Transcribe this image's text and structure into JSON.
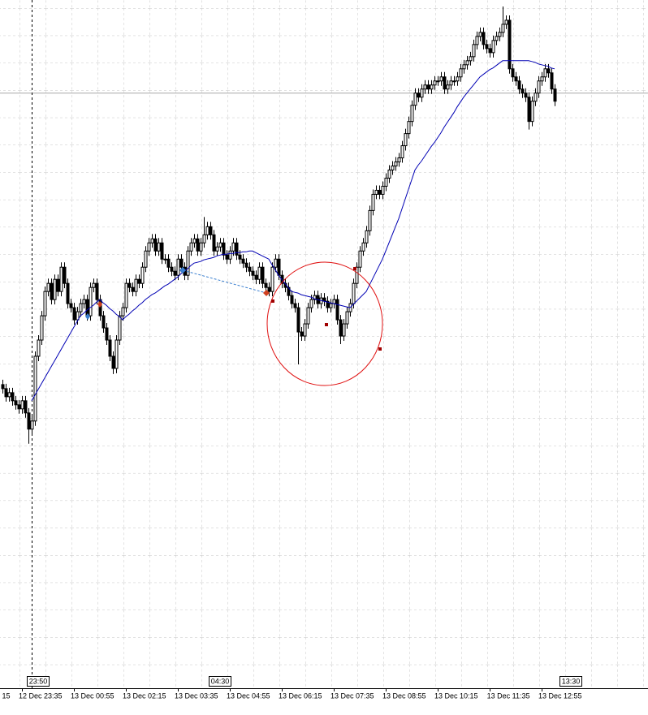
{
  "chart_data": {
    "type": "candlestick",
    "color": "#000000",
    "open": [
      375,
      370,
      360,
      365,
      355,
      350,
      345,
      355,
      340,
      320,
      330,
      410,
      430,
      460,
      490,
      500,
      480,
      505,
      490,
      520,
      500,
      475,
      470,
      455,
      465,
      475,
      480,
      460,
      495,
      500,
      480,
      460,
      445,
      430,
      410,
      395,
      430,
      460,
      470,
      500,
      495,
      490,
      505,
      500,
      520,
      540,
      550,
      555,
      540,
      550,
      530,
      530,
      520,
      515,
      510,
      530,
      520,
      510,
      540,
      550,
      555,
      540,
      550,
      560,
      570,
      560,
      540,
      545,
      550,
      535,
      530,
      540,
      550,
      535,
      530,
      525,
      520,
      515,
      510,
      505,
      520,
      500,
      495,
      490,
      520,
      530,
      510,
      500,
      495,
      485,
      475,
      470,
      440,
      435,
      450,
      470,
      480,
      485,
      475,
      482,
      478,
      470,
      475,
      480,
      455,
      435,
      450,
      465,
      475,
      500,
      520,
      540,
      550,
      565,
      590,
      610,
      615,
      610,
      620,
      630,
      640,
      645,
      650,
      655,
      670,
      685,
      700,
      720,
      735,
      730,
      740,
      745,
      740,
      745,
      750,
      750,
      755,
      740,
      745,
      750,
      750,
      755,
      765,
      770,
      775,
      780,
      795,
      805,
      810,
      795,
      790,
      785,
      800,
      805,
      810,
      820,
      825,
      765,
      755,
      750,
      740,
      735,
      730,
      700,
      725,
      735,
      750,
      755,
      765,
      760,
      740
    ],
    "high": [
      381,
      376,
      371,
      371,
      361,
      356,
      361,
      361,
      346,
      336,
      416,
      436,
      466,
      496,
      506,
      506,
      511,
      511,
      526,
      526,
      506,
      481,
      476,
      471,
      481,
      486,
      486,
      501,
      506,
      506,
      486,
      466,
      451,
      436,
      416,
      436,
      466,
      476,
      506,
      506,
      501,
      511,
      511,
      526,
      546,
      556,
      561,
      561,
      556,
      556,
      536,
      536,
      526,
      521,
      536,
      536,
      526,
      546,
      556,
      561,
      561,
      556,
      582,
      576,
      576,
      566,
      551,
      556,
      556,
      541,
      546,
      556,
      556,
      541,
      536,
      531,
      526,
      521,
      516,
      526,
      526,
      506,
      501,
      526,
      536,
      536,
      516,
      506,
      501,
      491,
      481,
      476,
      446,
      456,
      476,
      486,
      491,
      491,
      488,
      488,
      484,
      481,
      486,
      486,
      461,
      456,
      471,
      481,
      506,
      526,
      546,
      556,
      571,
      596,
      616,
      621,
      621,
      626,
      636,
      646,
      651,
      656,
      661,
      676,
      691,
      706,
      726,
      741,
      741,
      746,
      751,
      751,
      751,
      756,
      756,
      761,
      761,
      751,
      756,
      756,
      761,
      771,
      776,
      781,
      786,
      801,
      811,
      816,
      816,
      801,
      796,
      806,
      811,
      816,
      842,
      831,
      831,
      771,
      761,
      756,
      746,
      741,
      736,
      731,
      741,
      756,
      761,
      771,
      771,
      766,
      746
    ],
    "low": [
      364,
      354,
      354,
      349,
      344,
      339,
      339,
      334,
      302,
      314,
      324,
      404,
      424,
      454,
      484,
      474,
      474,
      484,
      484,
      494,
      469,
      464,
      449,
      449,
      459,
      469,
      454,
      454,
      489,
      474,
      454,
      439,
      424,
      404,
      388,
      389,
      424,
      454,
      464,
      489,
      484,
      484,
      494,
      494,
      514,
      534,
      544,
      534,
      534,
      524,
      524,
      514,
      509,
      504,
      504,
      514,
      504,
      504,
      534,
      544,
      534,
      534,
      544,
      554,
      554,
      534,
      534,
      539,
      529,
      524,
      524,
      534,
      529,
      524,
      519,
      514,
      509,
      504,
      499,
      499,
      494,
      489,
      484,
      484,
      514,
      504,
      494,
      489,
      479,
      469,
      464,
      400,
      429,
      429,
      444,
      464,
      474,
      469,
      469,
      472,
      464,
      464,
      469,
      449,
      425,
      429,
      444,
      459,
      469,
      494,
      514,
      534,
      544,
      559,
      584,
      604,
      604,
      604,
      614,
      624,
      634,
      639,
      644,
      649,
      664,
      679,
      694,
      714,
      724,
      724,
      734,
      734,
      734,
      739,
      744,
      744,
      734,
      734,
      739,
      744,
      744,
      749,
      759,
      764,
      769,
      774,
      789,
      799,
      789,
      784,
      779,
      779,
      794,
      799,
      804,
      814,
      759,
      749,
      744,
      734,
      729,
      724,
      690,
      694,
      719,
      729,
      744,
      749,
      754,
      734,
      719
    ],
    "close": [
      370,
      360,
      365,
      355,
      350,
      345,
      355,
      340,
      320,
      330,
      410,
      430,
      460,
      490,
      500,
      480,
      505,
      490,
      520,
      500,
      475,
      470,
      455,
      465,
      475,
      480,
      460,
      495,
      500,
      480,
      460,
      445,
      430,
      410,
      395,
      430,
      460,
      470,
      500,
      495,
      490,
      505,
      500,
      520,
      540,
      550,
      555,
      540,
      550,
      530,
      530,
      520,
      515,
      510,
      530,
      520,
      510,
      540,
      550,
      555,
      540,
      550,
      560,
      570,
      560,
      540,
      545,
      550,
      535,
      530,
      540,
      550,
      535,
      530,
      525,
      520,
      515,
      510,
      505,
      520,
      500,
      495,
      490,
      520,
      530,
      510,
      500,
      495,
      485,
      475,
      470,
      440,
      435,
      450,
      470,
      480,
      485,
      475,
      482,
      478,
      470,
      475,
      480,
      455,
      435,
      450,
      465,
      475,
      500,
      520,
      540,
      550,
      565,
      590,
      610,
      615,
      610,
      620,
      630,
      640,
      645,
      650,
      655,
      670,
      685,
      700,
      720,
      735,
      730,
      740,
      745,
      740,
      745,
      750,
      750,
      755,
      740,
      745,
      750,
      750,
      755,
      765,
      770,
      775,
      780,
      795,
      805,
      810,
      795,
      790,
      785,
      800,
      805,
      810,
      820,
      825,
      765,
      755,
      750,
      740,
      735,
      730,
      700,
      725,
      735,
      750,
      755,
      765,
      760,
      740,
      725
    ],
    "moving_average": {
      "color": "#0000b4",
      "values": [
        null,
        null,
        null,
        null,
        null,
        null,
        null,
        null,
        null,
        355,
        362,
        369,
        376,
        383,
        390,
        397,
        404,
        411,
        418,
        425,
        432,
        439,
        446,
        453,
        460,
        463,
        467,
        470,
        473,
        477,
        480,
        476,
        473,
        469,
        466,
        462,
        459,
        455,
        459,
        462,
        466,
        469,
        473,
        476,
        480,
        483,
        486,
        488,
        491,
        494,
        497,
        499,
        502,
        505,
        508,
        512,
        515,
        518,
        522,
        525,
        526,
        527,
        529,
        530,
        531,
        532,
        534,
        535,
        536,
        536,
        537,
        537,
        538,
        538,
        539,
        539,
        540,
        540,
        538,
        536,
        534,
        532,
        530,
        523,
        517,
        510,
        505,
        500,
        495,
        490,
        489,
        488,
        486,
        485,
        484,
        483,
        481,
        480,
        479,
        478,
        477,
        476,
        475,
        474,
        473,
        472,
        471,
        470,
        474,
        478,
        482,
        486,
        490,
        498,
        506,
        514,
        522,
        530,
        540,
        550,
        560,
        570,
        580,
        592,
        604,
        616,
        628,
        640,
        646,
        651,
        657,
        663,
        669,
        674,
        680,
        686,
        693,
        699,
        705,
        711,
        718,
        724,
        730,
        735,
        740,
        745,
        750,
        755,
        758,
        761,
        764,
        766,
        769,
        772,
        775,
        775,
        775,
        775,
        775,
        775,
        775,
        775,
        775,
        774,
        773,
        771,
        770,
        769,
        768,
        766,
        765
      ]
    },
    "hline": {
      "value": 735,
      "color": "#a8a8a8"
    },
    "ylim": [
      0,
      850
    ],
    "xlim": [
      -0.75,
      198.75
    ],
    "xticks": [
      {
        "value": -10,
        "label": "15"
      },
      {
        "value": 6,
        "label": "12 Dec 23:35"
      },
      {
        "value": 22,
        "label": "13 Dec 00:55"
      },
      {
        "value": 38,
        "label": "13 Dec 02:15"
      },
      {
        "value": 54,
        "label": "13 Dec 03:35"
      },
      {
        "value": 70,
        "label": "13 Dec 04:55"
      },
      {
        "value": 86,
        "label": "13 Dec 06:15"
      },
      {
        "value": 102,
        "label": "13 Dec 07:35"
      },
      {
        "value": 118,
        "label": "13 Dec 08:55"
      },
      {
        "value": 134,
        "label": "13 Dec 10:15"
      },
      {
        "value": 150,
        "label": "13 Dec 11:35"
      },
      {
        "value": 166,
        "label": "13 Dec 12:55"
      }
    ],
    "time_markers": [
      {
        "value": 9,
        "label": "23:50",
        "line": true
      },
      {
        "value": 65,
        "label": "04:30",
        "line": false
      },
      {
        "value": 173,
        "label": "13:30",
        "line": false
      }
    ]
  }
}
